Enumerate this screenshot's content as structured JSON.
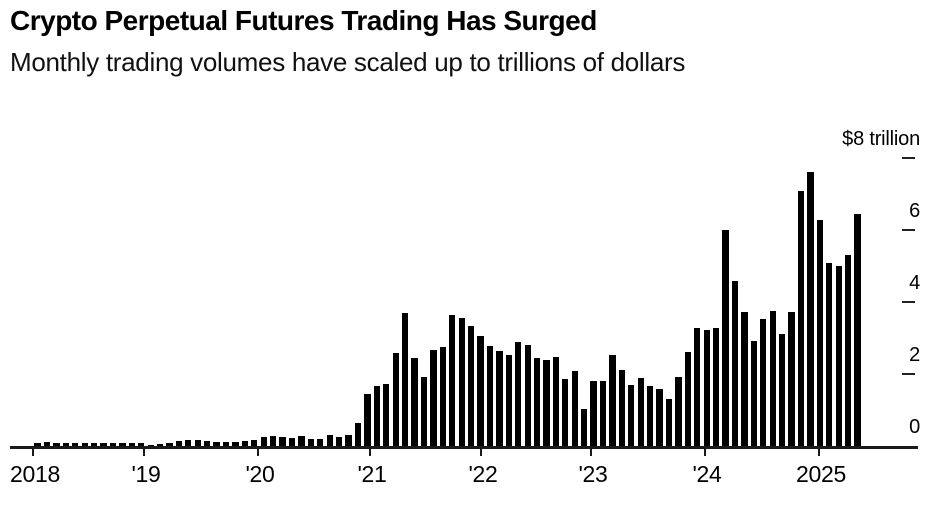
{
  "header": {
    "title": "Crypto Perpetual Futures Trading Has Surged",
    "subtitle": "Monthly trading volumes have scaled up to trillions of dollars"
  },
  "chart_data": {
    "type": "bar",
    "title": "Crypto Perpetual Futures Trading Has Surged",
    "subtitle": "Monthly trading volumes have scaled up to trillions of dollars",
    "unit": "USD trillions",
    "bar_color": "#000000",
    "grid": false,
    "legend": "none",
    "y_axis_side": "right",
    "ylim": [
      0,
      8
    ],
    "y_ticks": [
      {
        "value": 8,
        "label": "$8 trillion",
        "dash": true
      },
      {
        "value": 6,
        "label": "6",
        "dash": true
      },
      {
        "value": 4,
        "label": "4",
        "dash": true
      },
      {
        "value": 2,
        "label": "2",
        "dash": true
      },
      {
        "value": 0,
        "label": "0",
        "dash": false
      }
    ],
    "x_year_tick_labels": [
      "2018",
      "'19",
      "'20",
      "'21",
      "'22",
      "'23",
      "'24",
      "2025"
    ],
    "categories": [
      "2018-01",
      "2018-02",
      "2018-03",
      "2018-04",
      "2018-05",
      "2018-06",
      "2018-07",
      "2018-08",
      "2018-09",
      "2018-10",
      "2018-11",
      "2018-12",
      "2019-01",
      "2019-02",
      "2019-03",
      "2019-04",
      "2019-05",
      "2019-06",
      "2019-07",
      "2019-08",
      "2019-09",
      "2019-10",
      "2019-11",
      "2019-12",
      "2020-01",
      "2020-02",
      "2020-03",
      "2020-04",
      "2020-05",
      "2020-06",
      "2020-07",
      "2020-08",
      "2020-09",
      "2020-10",
      "2020-11",
      "2020-12",
      "2021-01",
      "2021-02",
      "2021-03",
      "2021-04",
      "2021-05",
      "2021-06",
      "2021-07",
      "2021-08",
      "2021-09",
      "2021-10",
      "2021-11",
      "2021-12",
      "2022-01",
      "2022-02",
      "2022-03",
      "2022-04",
      "2022-05",
      "2022-06",
      "2022-07",
      "2022-08",
      "2022-09",
      "2022-10",
      "2022-11",
      "2022-12",
      "2023-01",
      "2023-02",
      "2023-03",
      "2023-04",
      "2023-05",
      "2023-06",
      "2023-07",
      "2023-08",
      "2023-09",
      "2023-10",
      "2023-11",
      "2023-12",
      "2024-01",
      "2024-02",
      "2024-03",
      "2024-04",
      "2024-05",
      "2024-06",
      "2024-07",
      "2024-08",
      "2024-09",
      "2024-10",
      "2024-11",
      "2024-12",
      "2025-01",
      "2025-02",
      "2025-03",
      "2025-04"
    ],
    "values": [
      0.07,
      0.11,
      0.09,
      0.08,
      0.09,
      0.08,
      0.08,
      0.08,
      0.08,
      0.08,
      0.09,
      0.08,
      0.04,
      0.06,
      0.07,
      0.13,
      0.16,
      0.16,
      0.14,
      0.12,
      0.1,
      0.11,
      0.15,
      0.18,
      0.24,
      0.29,
      0.26,
      0.22,
      0.29,
      0.19,
      0.2,
      0.31,
      0.26,
      0.31,
      0.65,
      1.45,
      1.68,
      1.72,
      2.58,
      3.69,
      2.44,
      1.92,
      2.66,
      2.76,
      3.64,
      3.55,
      3.33,
      3.05,
      2.78,
      2.65,
      2.54,
      2.89,
      2.8,
      2.44,
      2.4,
      2.46,
      1.87,
      2.09,
      1.02,
      1.81,
      1.81,
      2.52,
      2.1,
      1.7,
      1.89,
      1.68,
      1.57,
      1.31,
      1.91,
      2.6,
      3.28,
      3.21,
      3.28,
      6.01,
      4.57,
      3.72,
      2.91,
      3.53,
      3.74,
      3.1,
      3.73,
      7.08,
      7.62,
      6.28,
      5.08,
      5.0,
      5.31,
      6.45
    ]
  }
}
